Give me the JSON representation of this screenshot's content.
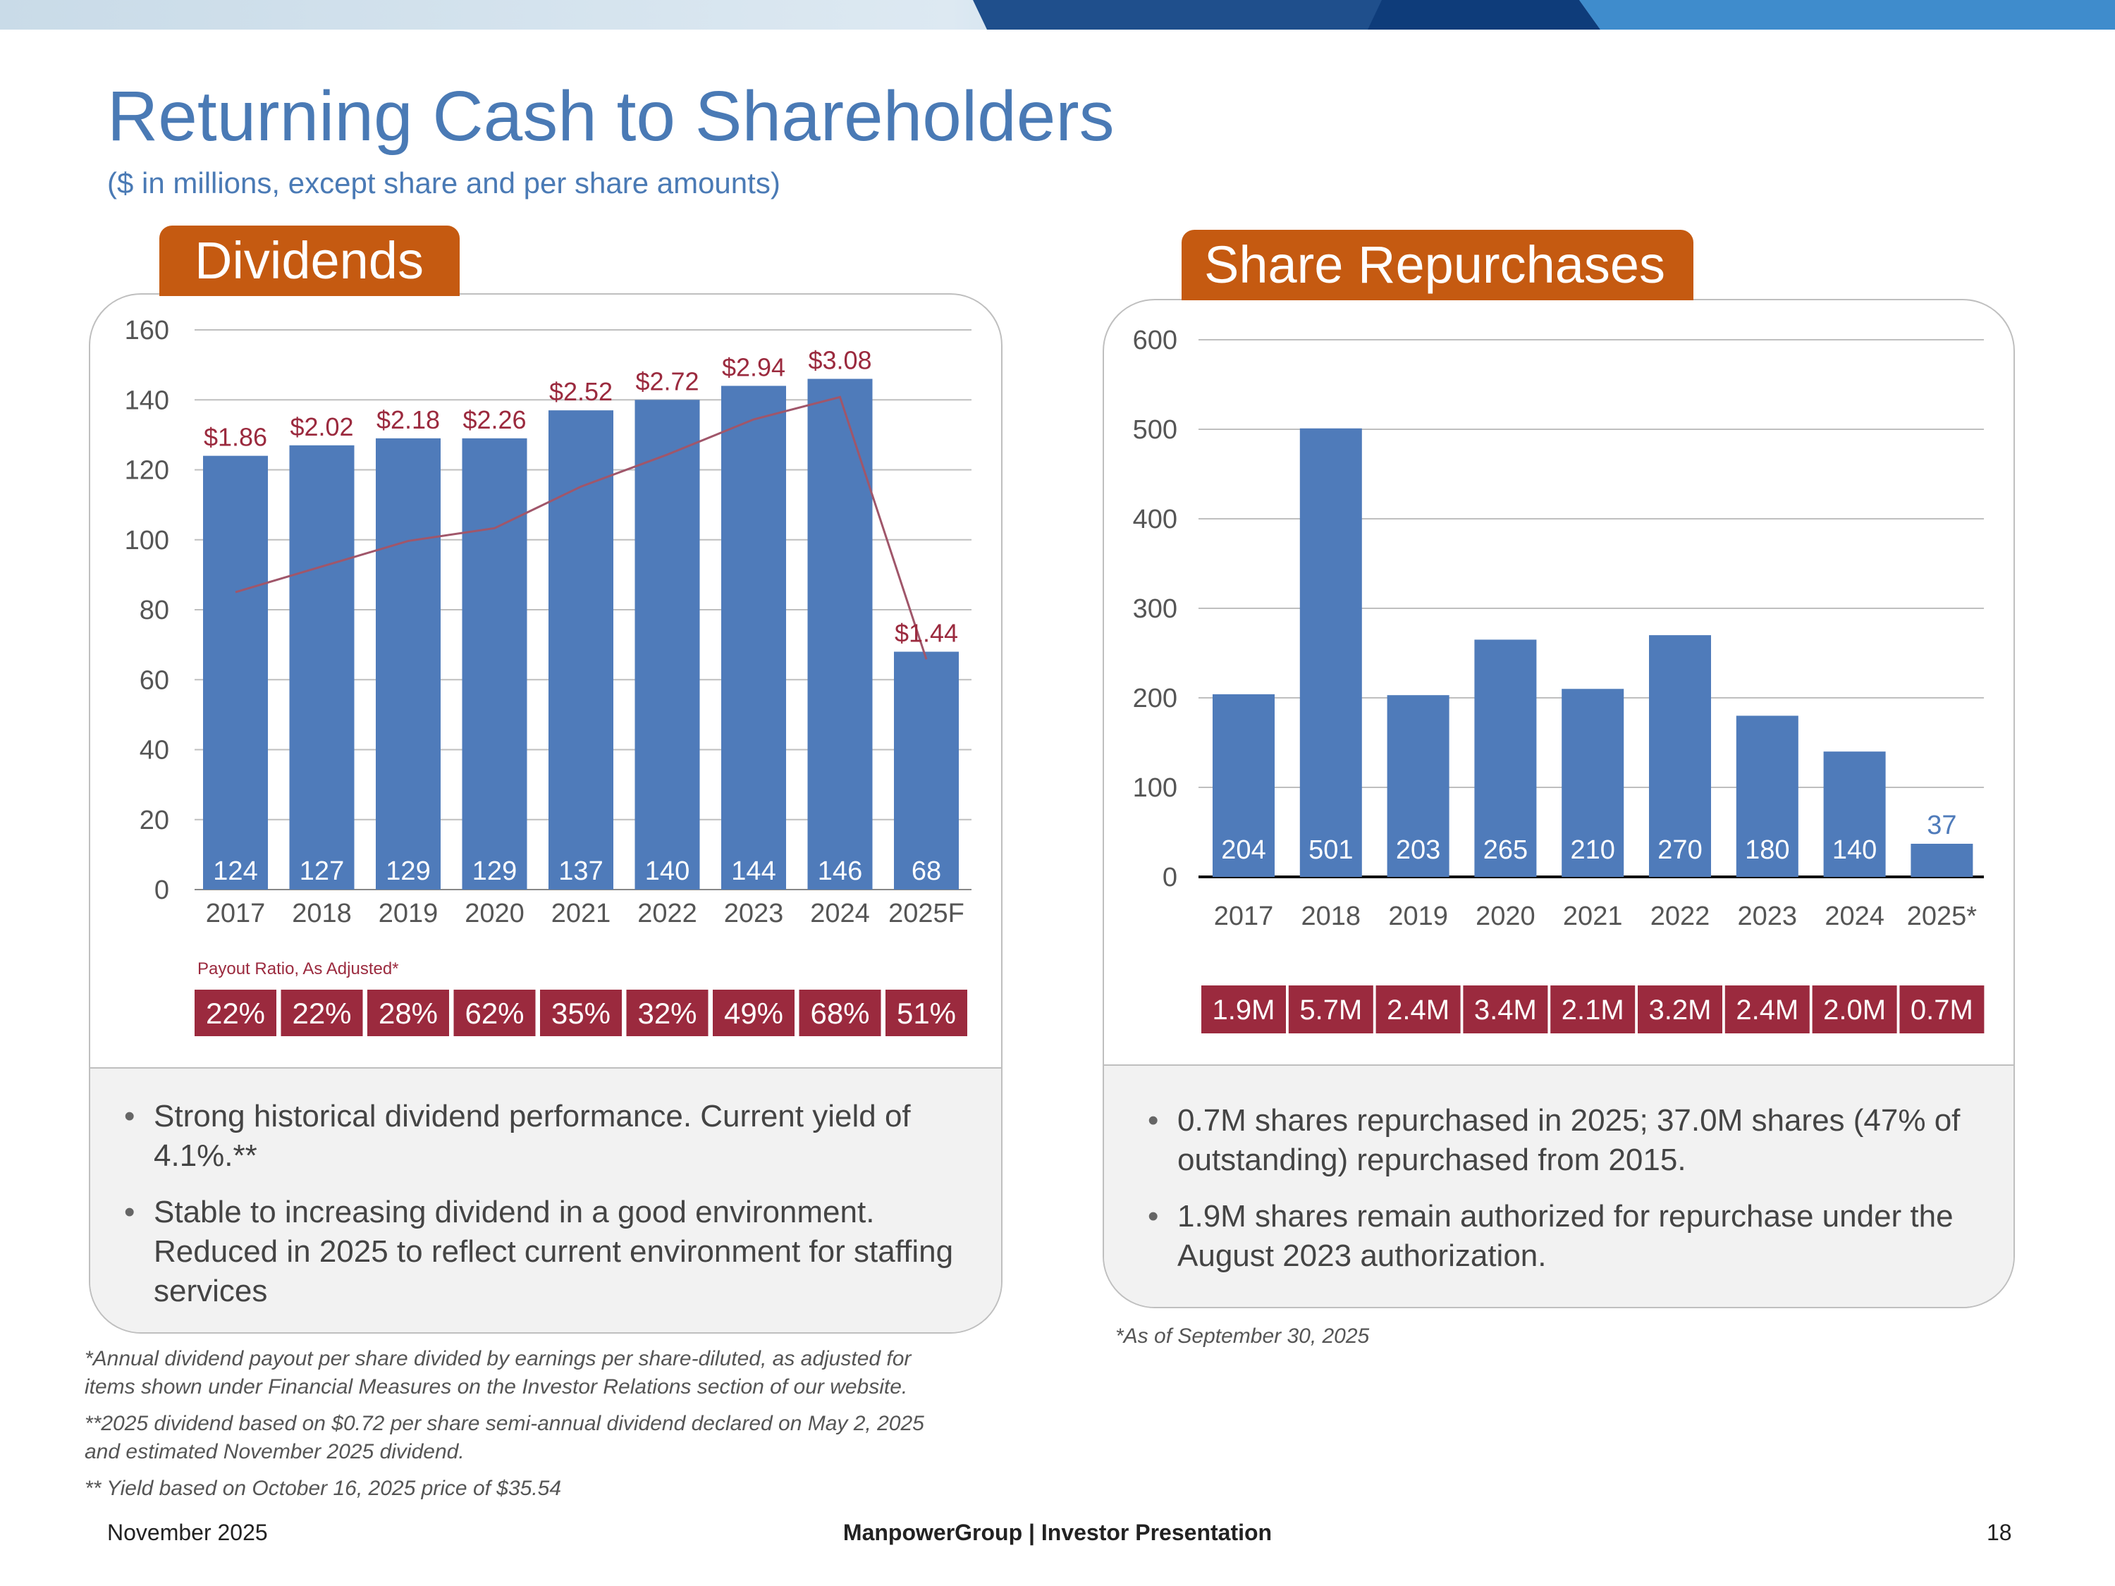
{
  "title": "Returning Cash to Shareholders",
  "subtitle": "($ in millions, except share and per share amounts)",
  "colors": {
    "title": "#4a7ab5",
    "bar": "#4f7bba",
    "tab": "#c55a11",
    "maroon": "#9b2a3e",
    "line": "#a0566a"
  },
  "dividends_tab": "Dividends",
  "repurchases_tab": "Share Repurchases",
  "dividends_bullets": [
    "Strong historical dividend performance. Current yield of 4.1%.**",
    "Stable to increasing dividend in a good environment. Reduced in 2025 to reflect current environment for staffing services"
  ],
  "repurchases_bullets": [
    "0.7M shares repurchased in 2025; 37.0M shares (47% of outstanding) repurchased from 2015.",
    "1.9M shares remain authorized for repurchase under the August 2023 authorization."
  ],
  "notes": {
    "dividend_note_1a": "*Annual dividend payout per share divided by earnings per share-diluted, as adjusted for",
    "dividend_note_1b": "items shown under Financial Measures on the Investor Relations section of our website.",
    "dividend_note_2a": "**2025 dividend based on $0.72 per share semi-annual dividend declared on May 2, 2025",
    "dividend_note_2b": "and estimated November 2025 dividend.",
    "dividend_note_3": "** Yield based on October 16, 2025 price of $35.54",
    "repurchase_note": "*As of September 30, 2025"
  },
  "footer": {
    "date": "November 2025",
    "center": "ManpowerGroup  |  Investor Presentation",
    "page": "18"
  },
  "chart_data": [
    {
      "type": "bar",
      "title": "Dividends",
      "categories": [
        "2017",
        "2018",
        "2019",
        "2020",
        "2021",
        "2022",
        "2023",
        "2024",
        "2025F"
      ],
      "values": [
        124,
        127,
        129,
        129,
        137,
        140,
        144,
        146,
        68
      ],
      "value_labels": [
        "124",
        "127",
        "129",
        "129",
        "137",
        "140",
        "144",
        "146",
        "68"
      ],
      "ylim": [
        0,
        160
      ],
      "yticks": [
        0,
        20,
        40,
        60,
        80,
        100,
        120,
        140,
        160
      ],
      "grid": true,
      "line_series": {
        "name": "Dividend per share",
        "values": [
          1.86,
          2.02,
          2.18,
          2.26,
          2.52,
          2.72,
          2.94,
          3.08,
          1.44
        ],
        "ylim": [
          0,
          3.5
        ]
      },
      "dps_labels": [
        "$1.86",
        "$2.02",
        "$2.18",
        "$2.26",
        "$2.52",
        "$2.72",
        "$2.94",
        "$3.08",
        "$1.44"
      ],
      "ratio_title": "Payout Ratio, As Adjusted*",
      "ratio_labels": [
        "22%",
        "22%",
        "28%",
        "62%",
        "35%",
        "32%",
        "49%",
        "68%",
        "51%"
      ]
    },
    {
      "type": "bar",
      "title": "Share Repurchases",
      "categories": [
        "2017",
        "2018",
        "2019",
        "2020",
        "2021",
        "2022",
        "2023",
        "2024",
        "2025*"
      ],
      "values": [
        204,
        501,
        203,
        265,
        210,
        270,
        180,
        140,
        37
      ],
      "value_labels": [
        "204",
        "501",
        "203",
        "265",
        "210",
        "270",
        "180",
        "140",
        "37"
      ],
      "ylim": [
        0,
        600
      ],
      "yticks": [
        0,
        100,
        200,
        300,
        400,
        500,
        600
      ],
      "grid": true,
      "shares_labels": [
        "1.9M",
        "5.7M",
        "2.4M",
        "3.4M",
        "2.1M",
        "3.2M",
        "2.4M",
        "2.0M",
        "0.7M"
      ]
    }
  ]
}
